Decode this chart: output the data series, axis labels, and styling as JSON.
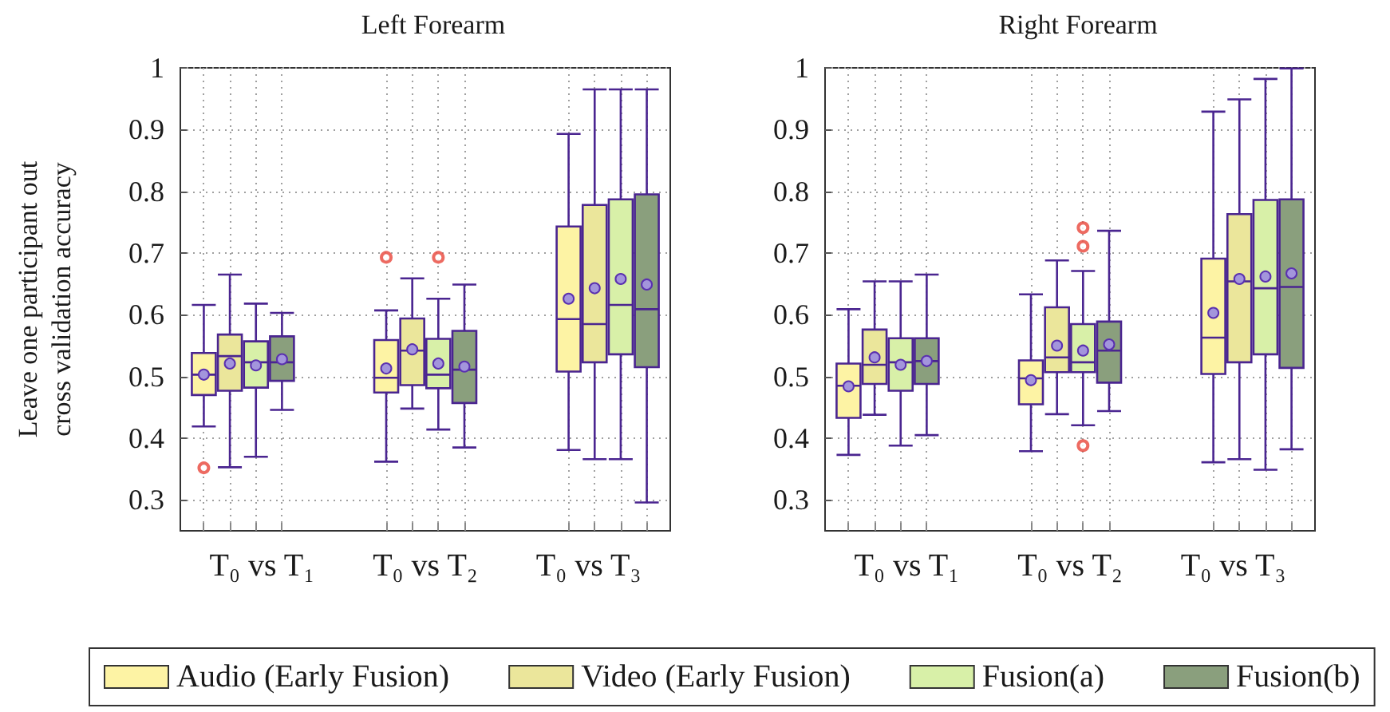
{
  "chart_data": [
    {
      "type": "box",
      "title": "Left Forearm",
      "ylabel": "Leave one participant out\ncross validation accuracy",
      "categories": [
        "T₀ vs T₁",
        "T₀ vs T₂",
        "T₀ vs T₃"
      ],
      "ylim": [
        0.25,
        1
      ],
      "yticks": [
        0.3,
        0.4,
        0.5,
        0.6,
        0.7,
        0.8,
        0.9,
        1
      ],
      "grid": true,
      "legend": "bottom",
      "series": [
        {
          "name": "Audio (Early Fusion)",
          "color": "#fdf3a4",
          "boxes": [
            {
              "low": 0.419,
              "q1": 0.47,
              "median": 0.503,
              "q3": 0.538,
              "high": 0.616,
              "mean": 0.503,
              "outliers": [
                0.352
              ]
            },
            {
              "low": 0.362,
              "q1": 0.474,
              "median": 0.498,
              "q3": 0.559,
              "high": 0.607,
              "mean": 0.513,
              "outliers": [
                0.693
              ]
            },
            {
              "low": 0.381,
              "q1": 0.508,
              "median": 0.593,
              "q3": 0.743,
              "high": 0.893,
              "mean": 0.626
            }
          ]
        },
        {
          "name": "Video (Early Fusion)",
          "color": "#ebe69b",
          "boxes": [
            {
              "low": 0.353,
              "q1": 0.477,
              "median": 0.533,
              "q3": 0.568,
              "high": 0.665,
              "mean": 0.521
            },
            {
              "low": 0.448,
              "q1": 0.486,
              "median": 0.542,
              "q3": 0.594,
              "high": 0.659,
              "mean": 0.544
            },
            {
              "low": 0.366,
              "q1": 0.523,
              "median": 0.585,
              "q3": 0.778,
              "high": 0.965,
              "mean": 0.643
            }
          ]
        },
        {
          "name": "Fusion(a)",
          "color": "#d8f0a8",
          "boxes": [
            {
              "low": 0.37,
              "q1": 0.482,
              "median": 0.523,
              "q3": 0.557,
              "high": 0.618,
              "mean": 0.518
            },
            {
              "low": 0.414,
              "q1": 0.481,
              "median": 0.503,
              "q3": 0.561,
              "high": 0.626,
              "mean": 0.521,
              "outliers": [
                0.693
              ]
            },
            {
              "low": 0.366,
              "q1": 0.536,
              "median": 0.616,
              "q3": 0.787,
              "high": 0.965,
              "mean": 0.658
            }
          ]
        },
        {
          "name": "Fusion(b)",
          "color": "#8a9f7d",
          "boxes": [
            {
              "low": 0.446,
              "q1": 0.493,
              "median": 0.523,
              "q3": 0.565,
              "high": 0.603,
              "mean": 0.528
            },
            {
              "low": 0.385,
              "q1": 0.457,
              "median": 0.511,
              "q3": 0.574,
              "high": 0.649,
              "mean": 0.516
            },
            {
              "low": 0.296,
              "q1": 0.515,
              "median": 0.609,
              "q3": 0.795,
              "high": 0.965,
              "mean": 0.649
            }
          ]
        }
      ]
    },
    {
      "type": "box",
      "title": "Right Forearm",
      "categories": [
        "T₀ vs T₁",
        "T₀ vs T₂",
        "T₀ vs T₃"
      ],
      "ylim": [
        0.25,
        1
      ],
      "yticks": [
        0.3,
        0.4,
        0.5,
        0.6,
        0.7,
        0.8,
        0.9,
        1
      ],
      "grid": true,
      "series": [
        {
          "color": "#fdf3a4",
          "boxes": [
            {
              "low": 0.373,
              "q1": 0.433,
              "median": 0.485,
              "q3": 0.521,
              "high": 0.609,
              "mean": 0.484
            },
            {
              "low": 0.379,
              "q1": 0.455,
              "median": 0.497,
              "q3": 0.526,
              "high": 0.633,
              "mean": 0.494
            },
            {
              "low": 0.361,
              "q1": 0.504,
              "median": 0.563,
              "q3": 0.691,
              "high": 0.929,
              "mean": 0.603
            }
          ]
        },
        {
          "color": "#ebe69b",
          "boxes": [
            {
              "low": 0.438,
              "q1": 0.488,
              "median": 0.519,
              "q3": 0.576,
              "high": 0.654,
              "mean": 0.531
            },
            {
              "low": 0.439,
              "q1": 0.507,
              "median": 0.531,
              "q3": 0.612,
              "high": 0.688,
              "mean": 0.55
            },
            {
              "low": 0.366,
              "q1": 0.523,
              "median": 0.654,
              "q3": 0.763,
              "high": 0.949,
              "mean": 0.658
            }
          ]
        },
        {
          "color": "#d8f0a8",
          "boxes": [
            {
              "low": 0.388,
              "q1": 0.477,
              "median": 0.523,
              "q3": 0.562,
              "high": 0.654,
              "mean": 0.519
            },
            {
              "low": 0.421,
              "q1": 0.507,
              "median": 0.523,
              "q3": 0.585,
              "high": 0.671,
              "mean": 0.542,
              "outliers": [
                0.741,
                0.711,
                0.388
              ]
            },
            {
              "low": 0.349,
              "q1": 0.536,
              "median": 0.643,
              "q3": 0.786,
              "high": 0.982,
              "mean": 0.662
            }
          ]
        },
        {
          "color": "#8a9f7d",
          "boxes": [
            {
              "low": 0.405,
              "q1": 0.488,
              "median": 0.525,
              "q3": 0.562,
              "high": 0.665,
              "mean": 0.525
            },
            {
              "low": 0.444,
              "q1": 0.49,
              "median": 0.542,
              "q3": 0.589,
              "high": 0.736,
              "mean": 0.552
            },
            {
              "low": 0.382,
              "q1": 0.514,
              "median": 0.645,
              "q3": 0.787,
              "high": 0.999,
              "mean": 0.667
            }
          ]
        }
      ]
    }
  ]
}
